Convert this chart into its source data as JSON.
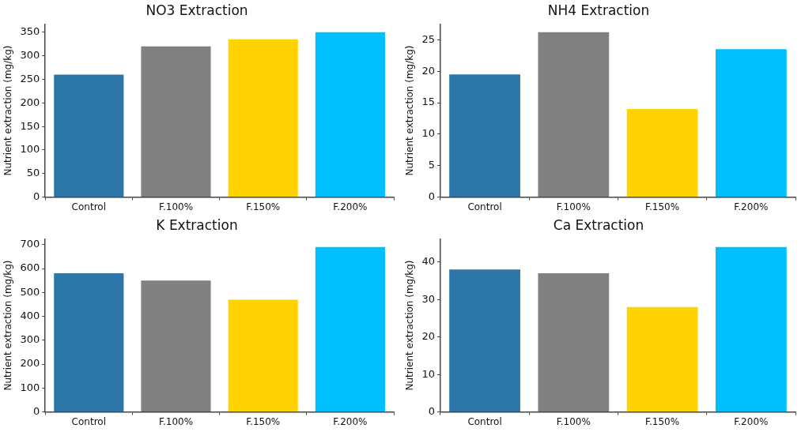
{
  "chart_data": [
    {
      "type": "bar",
      "title": "NO3 Extraction",
      "ylabel": "Nutrient extraction (mg/kg)",
      "categories": [
        "Control",
        "F.100%",
        "F.150%",
        "F.200%"
      ],
      "values": [
        260,
        320,
        335,
        350
      ],
      "colors": [
        "#2c77a8",
        "#808080",
        "#ffd300",
        "#00bfff"
      ],
      "ylim": [
        0,
        367.5
      ],
      "yticks": [
        0,
        50,
        100,
        150,
        200,
        250,
        300,
        350
      ],
      "grid": false,
      "legend": false
    },
    {
      "type": "bar",
      "title": "NH4 Extraction",
      "ylabel": "Nutrient extraction (mg/kg)",
      "categories": [
        "Control",
        "F.100%",
        "F.150%",
        "F.200%"
      ],
      "values": [
        19.5,
        26.2,
        14,
        23.5
      ],
      "colors": [
        "#2c77a8",
        "#808080",
        "#ffd300",
        "#00bfff"
      ],
      "ylim": [
        0,
        27.5
      ],
      "yticks": [
        0,
        5,
        10,
        15,
        20,
        25
      ],
      "grid": false,
      "legend": false
    },
    {
      "type": "bar",
      "title": "K Extraction",
      "ylabel": "Nutrient extraction (mg/kg)",
      "categories": [
        "Control",
        "F.100%",
        "F.150%",
        "F.200%"
      ],
      "values": [
        580,
        550,
        470,
        690
      ],
      "colors": [
        "#2c77a8",
        "#808080",
        "#ffd300",
        "#00bfff"
      ],
      "ylim": [
        0,
        724.5
      ],
      "yticks": [
        0,
        100,
        200,
        300,
        400,
        500,
        600,
        700
      ],
      "grid": false,
      "legend": false
    },
    {
      "type": "bar",
      "title": "Ca Extraction",
      "ylabel": "Nutrient extraction (mg/kg)",
      "categories": [
        "Control",
        "F.100%",
        "F.150%",
        "F.200%"
      ],
      "values": [
        38,
        37,
        28,
        44
      ],
      "colors": [
        "#2c77a8",
        "#808080",
        "#ffd300",
        "#00bfff"
      ],
      "ylim": [
        0,
        46.2
      ],
      "yticks": [
        0,
        10,
        20,
        30,
        40
      ],
      "grid": false,
      "legend": false
    }
  ]
}
